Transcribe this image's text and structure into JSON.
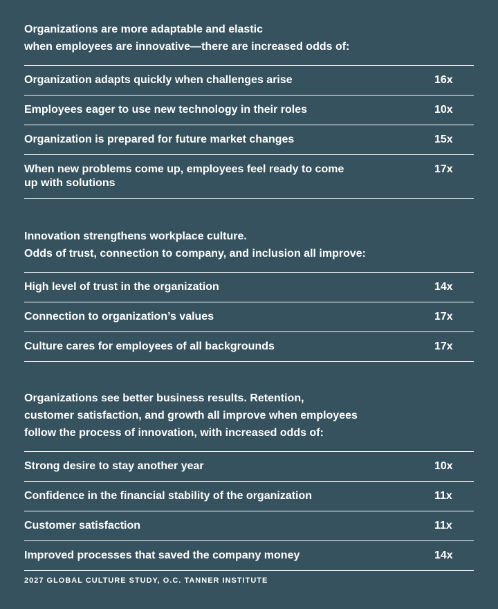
{
  "sections": [
    {
      "intro": [
        "Organizations are more adaptable and elastic",
        "when employees are innovative—there are increased odds of:"
      ],
      "rows": [
        {
          "label": "Organization adapts quickly when challenges arise",
          "value": "16x"
        },
        {
          "label": "Employees eager to use new technology in their roles",
          "value": "10x"
        },
        {
          "label": "Organization is prepared for future market changes",
          "value": "15x"
        },
        {
          "label": "When new problems come up, employees feel ready to come up with solutions",
          "value": "17x"
        }
      ]
    },
    {
      "intro": [
        "Innovation strengthens workplace culture.",
        "Odds of trust, connection to company, and inclusion all improve:"
      ],
      "rows": [
        {
          "label": "High level of trust in the organization",
          "value": "14x"
        },
        {
          "label": "Connection to organization’s values",
          "value": "17x"
        },
        {
          "label": "Culture cares for employees of all backgrounds",
          "value": "17x"
        }
      ]
    },
    {
      "intro": [
        "Organizations see better business results. Retention,",
        "customer satisfaction, and growth all improve when employees",
        "follow the process of innovation, with increased odds of:"
      ],
      "rows": [
        {
          "label": "Strong desire to stay another year",
          "value": "10x"
        },
        {
          "label": "Confidence in the financial stability of the organization",
          "value": "11x"
        },
        {
          "label": "Customer satisfaction",
          "value": "11x"
        },
        {
          "label": "Improved processes that saved the company money",
          "value": "14x"
        }
      ]
    }
  ],
  "footer": "2027 GLOBAL CULTURE STUDY, O.C. TANNER INSTITUTE"
}
